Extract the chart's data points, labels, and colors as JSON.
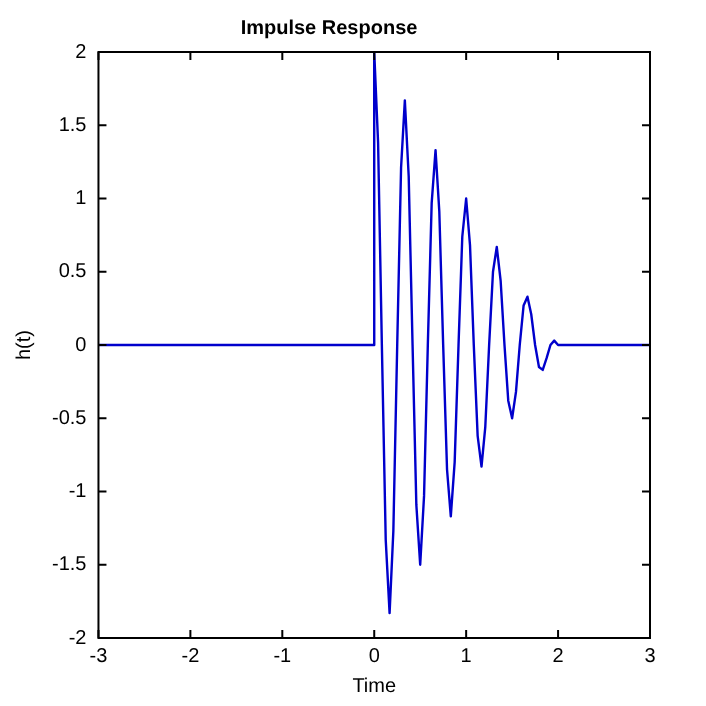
{
  "chart_data": {
    "type": "line",
    "title": "Impulse Response",
    "xlabel": "Time",
    "ylabel": "h(t)",
    "x": [
      -3,
      0,
      0,
      0.042,
      0.083,
      0.125,
      0.167,
      0.208,
      0.25,
      0.292,
      0.333,
      0.375,
      0.417,
      0.458,
      0.5,
      0.542,
      0.583,
      0.625,
      0.667,
      0.708,
      0.75,
      0.792,
      0.833,
      0.875,
      0.917,
      0.958,
      1.0,
      1.042,
      1.083,
      1.125,
      1.167,
      1.208,
      1.25,
      1.292,
      1.333,
      1.375,
      1.417,
      1.458,
      1.5,
      1.542,
      1.583,
      1.625,
      1.667,
      1.708,
      1.75,
      1.792,
      1.833,
      1.875,
      1.917,
      1.958,
      2.0,
      3
    ],
    "series": [
      {
        "color": "#0000cc",
        "values": [
          0,
          0,
          2,
          1.38,
          0,
          -1.33,
          -1.83,
          -1.27,
          0,
          1.21,
          1.67,
          1.15,
          0,
          -1.09,
          -1.5,
          -1.03,
          0,
          0.97,
          1.33,
          0.91,
          0,
          -0.85,
          -1.17,
          -0.8,
          0,
          0.74,
          1.0,
          0.68,
          0,
          -0.62,
          -0.83,
          -0.56,
          0,
          0.5,
          0.67,
          0.44,
          0,
          -0.38,
          -0.5,
          -0.32,
          0,
          0.27,
          0.33,
          0.21,
          0,
          -0.15,
          -0.17,
          -0.09,
          0,
          0.03,
          0,
          0
        ]
      }
    ],
    "xlim": [
      -3,
      3
    ],
    "xticks": [
      -3,
      -2,
      -1,
      0,
      1,
      2,
      3
    ],
    "ylim": [
      -2,
      2
    ],
    "yticks": [
      -2,
      -1.5,
      -1,
      -0.5,
      0,
      0.5,
      1,
      1.5,
      2
    ],
    "grid": false,
    "legend": false,
    "marker": "none",
    "line_style": "solid"
  }
}
